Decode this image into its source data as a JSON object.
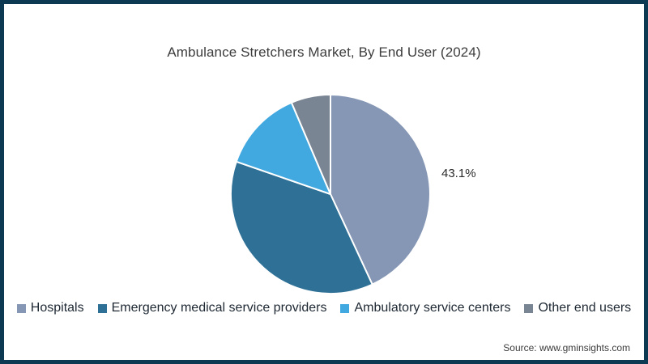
{
  "frame": {
    "border_color": "#0d3a52",
    "background_color": "#ffffff"
  },
  "title": "Ambulance Stretchers Market, By End User (2024)",
  "source_note": "Source: www.gminsights.com",
  "chart_data": {
    "type": "pie",
    "title": "Ambulance Stretchers Market, By End User (2024)",
    "unit": "%",
    "start_angle_deg": 0,
    "direction": "clockwise",
    "legend_position": "bottom",
    "slice_divider_color": "#ffffff",
    "slices": [
      {
        "label": "Hospitals",
        "value": 43.1,
        "color": "#8697b5",
        "data_label": "43.1%"
      },
      {
        "label": "Emergency medical service providers",
        "value": 37.2,
        "color": "#2e7096",
        "data_label": ""
      },
      {
        "label": "Ambulatory service centers",
        "value": 13.3,
        "color": "#42a9e0",
        "data_label": ""
      },
      {
        "label": "Other end users",
        "value": 6.4,
        "color": "#7a8593",
        "data_label": ""
      }
    ]
  }
}
